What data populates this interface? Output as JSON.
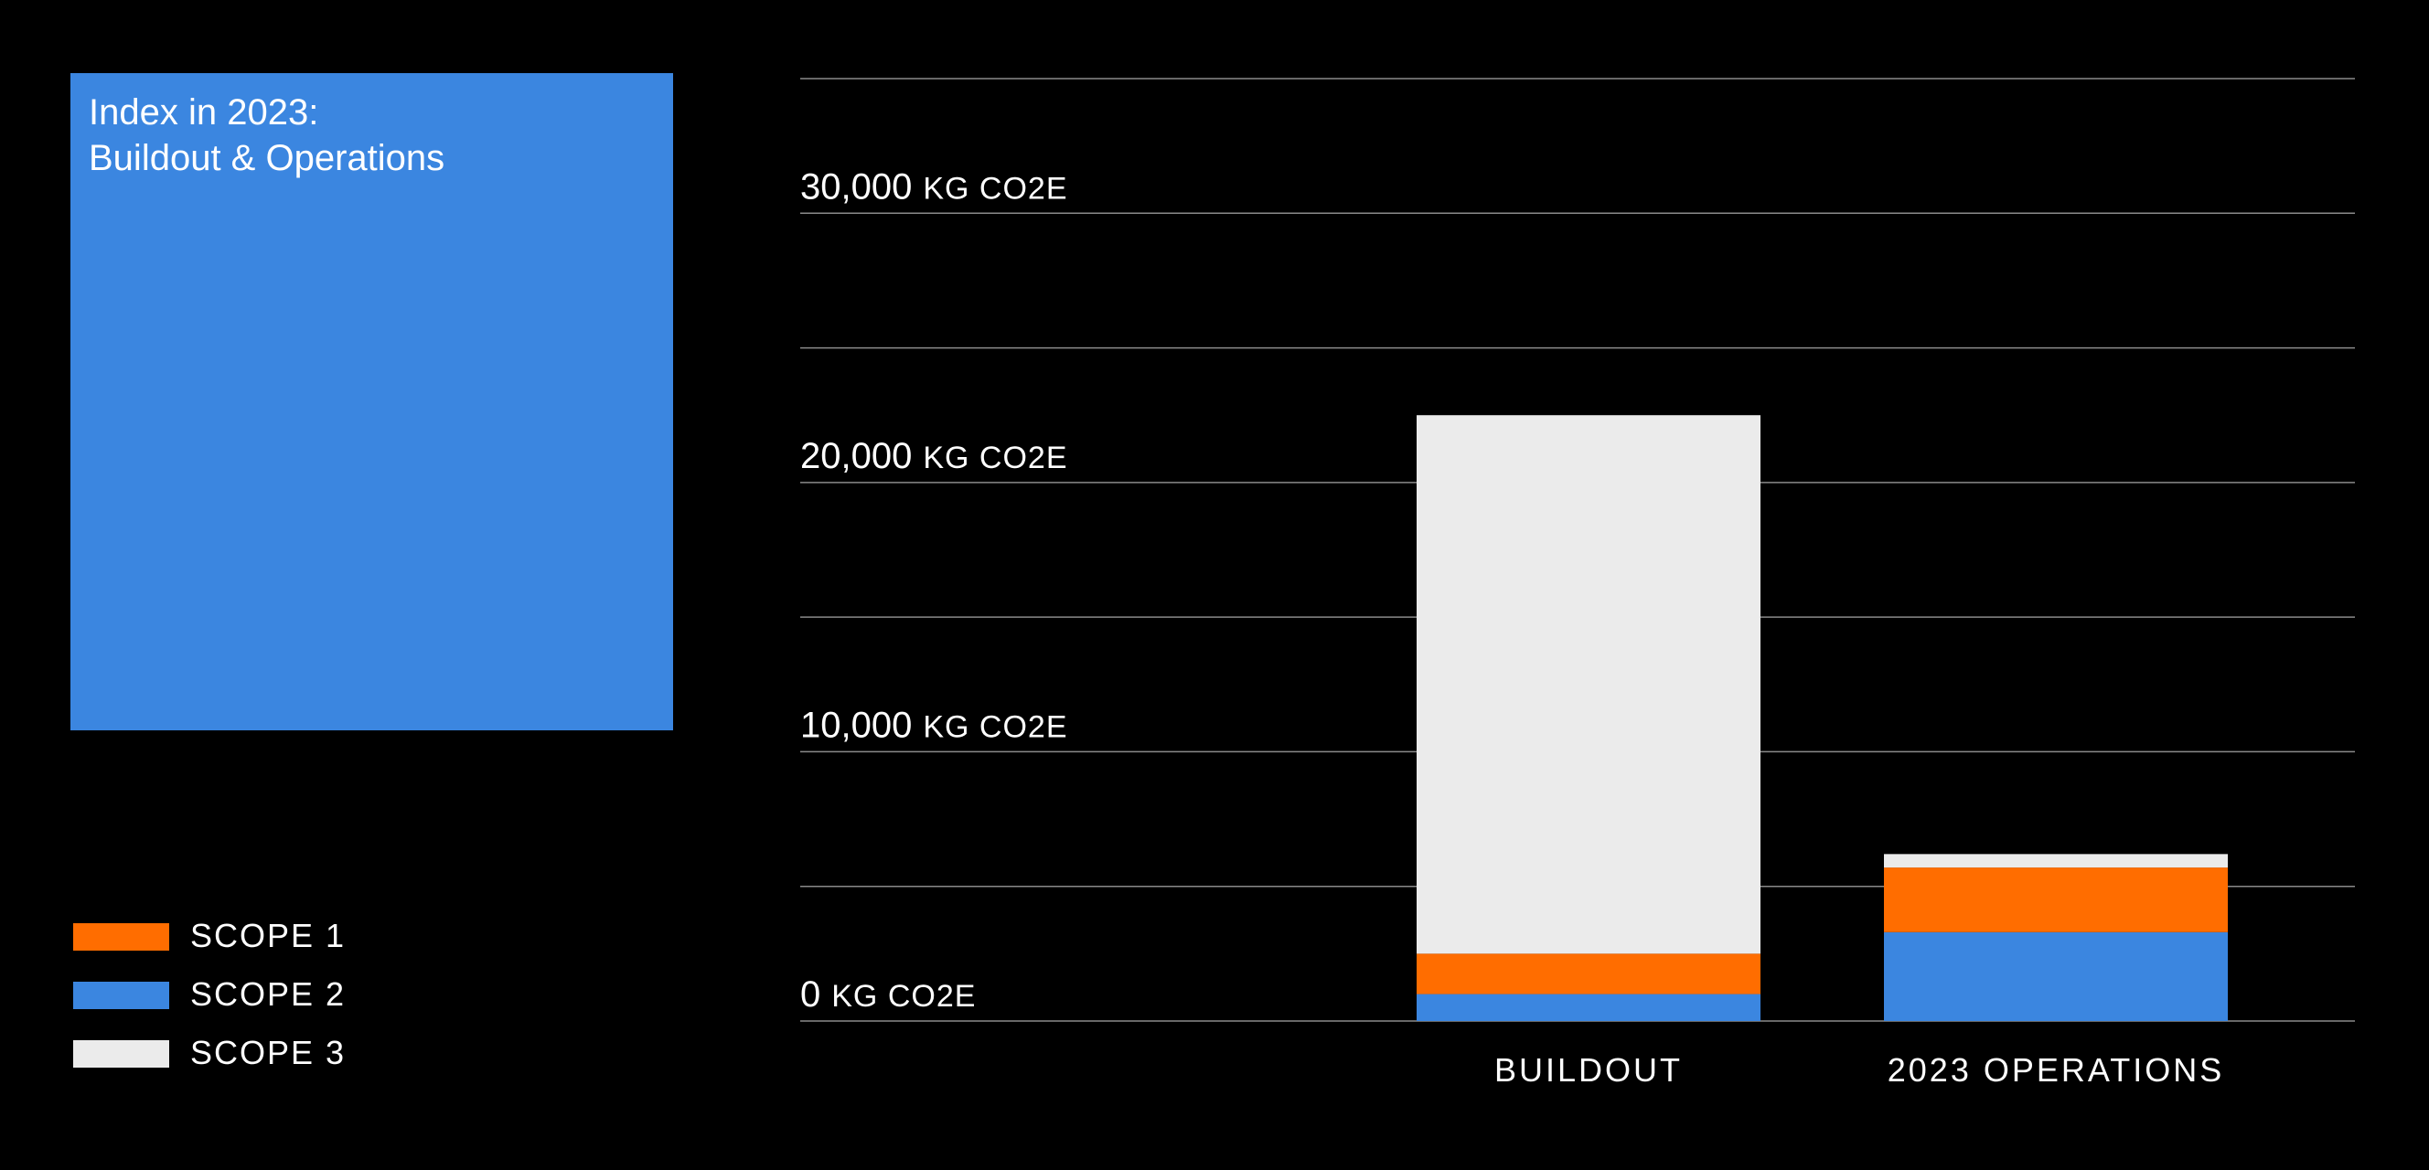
{
  "chart_data": {
    "type": "bar",
    "stacked": true,
    "title_lines": [
      "Index in 2023:",
      "Buildout & Operations"
    ],
    "categories": [
      "BUILDOUT",
      "2023 OPERATIONS"
    ],
    "series": [
      {
        "name": "SCOPE 1",
        "color": "#ff6d00",
        "values": [
          1500,
          2400
        ]
      },
      {
        "name": "SCOPE 2",
        "color": "#3b86e0",
        "values": [
          1000,
          3300
        ]
      },
      {
        "name": "SCOPE 3",
        "color": "#ebebeb",
        "values": [
          20000,
          500
        ]
      }
    ],
    "stack_order": [
      "SCOPE 2",
      "SCOPE 1",
      "SCOPE 3"
    ],
    "ylim": [
      0,
      35000
    ],
    "yticks": [
      {
        "value": 0,
        "number": "0",
        "unit": "KG CO2E"
      },
      {
        "value": 10000,
        "number": "10,000",
        "unit": "KG CO2E"
      },
      {
        "value": 20000,
        "number": "20,000",
        "unit": "KG CO2E"
      },
      {
        "value": 30000,
        "number": "30,000",
        "unit": "KG CO2E"
      }
    ],
    "gridline_step": 5000,
    "grid": true,
    "legend_position": "bottom-left",
    "title_box_color": "#3b86e0",
    "background": "#000000"
  }
}
